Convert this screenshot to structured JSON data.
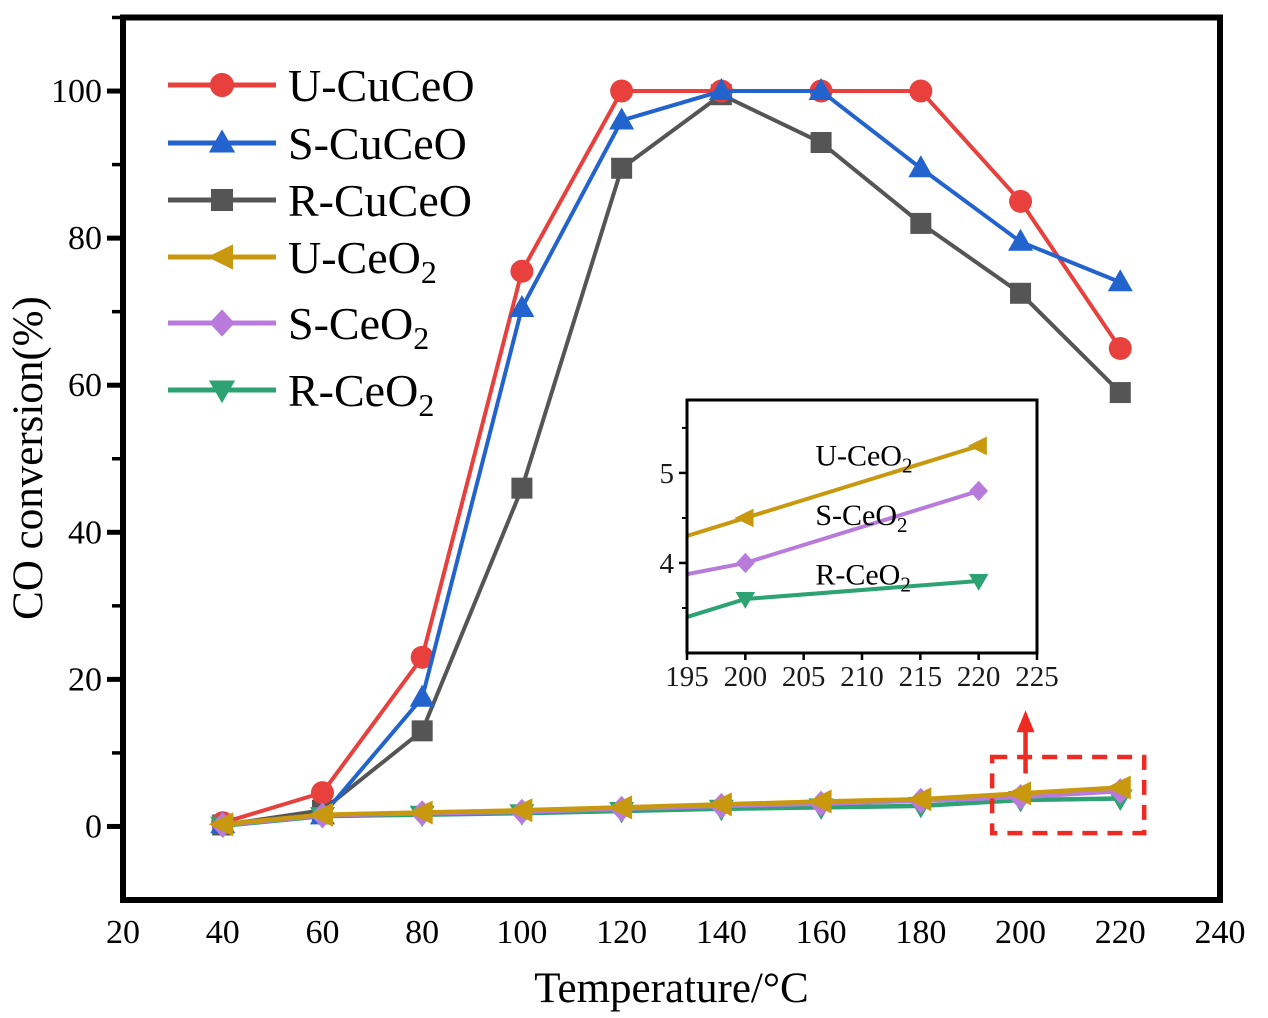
{
  "figure": {
    "kind": "scientific-line-chart",
    "background": "#FFFFFF",
    "frame_color": "#000000"
  },
  "chart_data": {
    "type": "line",
    "title": "",
    "xlabel": "Temperature/°C",
    "ylabel": "CO conversion(%)",
    "xlim": [
      20,
      240
    ],
    "ylim": [
      -10,
      110
    ],
    "xticks": [
      20,
      40,
      60,
      80,
      100,
      120,
      140,
      160,
      180,
      200,
      220,
      240
    ],
    "yticks": [
      0,
      20,
      40,
      60,
      80,
      100
    ],
    "yminor": [
      10,
      30,
      50,
      70,
      90,
      110
    ],
    "grid": false,
    "legend_position": "upper-left-inside",
    "x": [
      40,
      60,
      80,
      100,
      120,
      140,
      160,
      180,
      200,
      220
    ],
    "series": [
      {
        "name": "U-CuCeO",
        "label_main": "U-CuCeO",
        "label_sub": "",
        "color": "#E8403C",
        "marker": "circle",
        "values": [
          0.5,
          4.6,
          23,
          75.5,
          100,
          100,
          100,
          100,
          85,
          65
        ]
      },
      {
        "name": "S-CuCeO",
        "label_main": "S-CuCeO",
        "label_sub": "",
        "color": "#2263CE",
        "marker": "triangle-up",
        "values": [
          0.3,
          1.5,
          17.5,
          70.5,
          96,
          100,
          100,
          89.5,
          79.5,
          74
        ]
      },
      {
        "name": "R-CuCeO",
        "label_main": "R-CuCeO",
        "label_sub": "",
        "color": "#555555",
        "marker": "square",
        "values": [
          0.2,
          2.2,
          13,
          46,
          89.5,
          99.5,
          93,
          82,
          72.5,
          59
        ]
      },
      {
        "name": "U-CeO2",
        "label_main": "U-CeO",
        "label_sub": "2",
        "color": "#C8990F",
        "marker": "triangle-left",
        "values": [
          0.3,
          1.6,
          1.9,
          2.2,
          2.6,
          3.0,
          3.4,
          3.7,
          4.5,
          5.3
        ]
      },
      {
        "name": "S-CeO2",
        "label_main": "S-CeO",
        "label_sub": "2",
        "color": "#B87BDB",
        "marker": "diamond",
        "values": [
          0.2,
          1.5,
          1.8,
          2.0,
          2.4,
          2.8,
          3.1,
          3.5,
          4.0,
          4.8
        ]
      },
      {
        "name": "R-CeO2",
        "label_main": "R-CeO",
        "label_sub": "2",
        "color": "#2DA273",
        "marker": "triangle-down",
        "values": [
          0.1,
          1.4,
          1.6,
          1.8,
          2.1,
          2.4,
          2.6,
          2.8,
          3.6,
          3.8
        ]
      }
    ],
    "inset": {
      "xlim": [
        195,
        225
      ],
      "ylim": [
        3.0,
        5.81
      ],
      "xticks": [
        195,
        200,
        205,
        210,
        215,
        220,
        225
      ],
      "yticks": [
        4,
        5
      ],
      "yminor": [
        3.5,
        4.5,
        5.5
      ],
      "series_names": [
        "R-CeO2",
        "S-CeO2",
        "U-CeO2"
      ],
      "marker_x": [
        200,
        220
      ],
      "labels": [
        {
          "main": "U-CeO",
          "sub": "2",
          "x": 206,
          "y": 5.08
        },
        {
          "main": "S-CeO",
          "sub": "2",
          "x": 206,
          "y": 4.42
        },
        {
          "main": "R-CeO",
          "sub": "2",
          "x": 206,
          "y": 3.76
        }
      ]
    },
    "annotation": {
      "dashed_box": {
        "x1": 194.3,
        "y1": -0.9,
        "x2": 224.8,
        "y2": 9.45,
        "color": "#EE2B22"
      },
      "arrow": {
        "x": 201,
        "y_from": 7.2,
        "y_to": 15.8,
        "color": "#EE2B22"
      }
    }
  }
}
